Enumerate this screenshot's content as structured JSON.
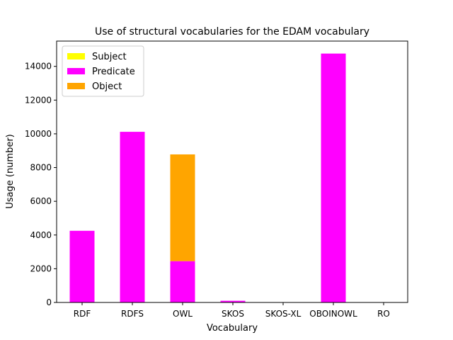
{
  "chart_data": {
    "type": "bar",
    "stacked": true,
    "title": "Use of structural vocabularies for the EDAM vocabulary",
    "xlabel": "Vocabulary",
    "ylabel": "Usage (number)",
    "ylim": [
      0,
      15500
    ],
    "yticks": [
      0,
      2000,
      4000,
      6000,
      8000,
      10000,
      12000,
      14000
    ],
    "ytick_labels": [
      "0",
      "2000",
      "4000",
      "6000",
      "8000",
      "10000",
      "12000",
      "14000"
    ],
    "categories": [
      "RDF",
      "RDFS",
      "OWL",
      "SKOS",
      "SKOS-XL",
      "OBOINOWL",
      "RO"
    ],
    "series": [
      {
        "name": "Subject",
        "color": "#ffff00",
        "values": [
          0,
          0,
          0,
          0,
          0,
          0,
          0
        ]
      },
      {
        "name": "Predicate",
        "color": "#ff00ff",
        "values": [
          4250,
          10120,
          2450,
          100,
          0,
          14760,
          0
        ]
      },
      {
        "name": "Object",
        "color": "#ffa500",
        "values": [
          0,
          0,
          6330,
          0,
          0,
          0,
          0
        ]
      }
    ],
    "legend_position": "top-left",
    "grid": false
  }
}
